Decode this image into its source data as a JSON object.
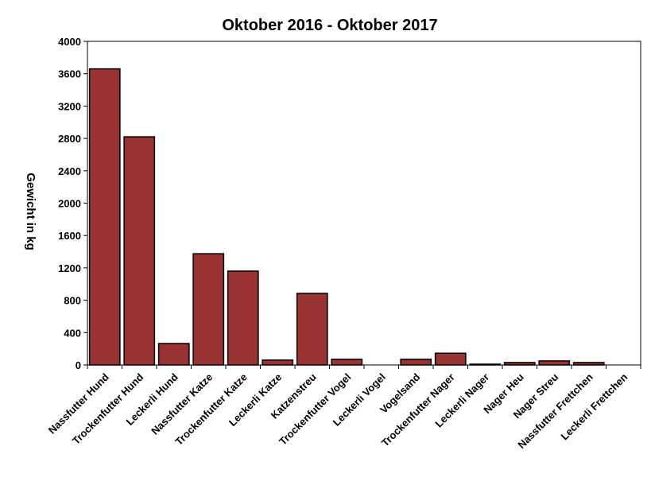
{
  "chart_data": {
    "type": "bar",
    "title": "Oktober 2016 - Oktober 2017",
    "ylabel": "Gewicht in kg",
    "xlabel": "",
    "ylim": [
      0,
      4000
    ],
    "yticks": [
      "0",
      "400",
      "800",
      "1200",
      "1600",
      "2000",
      "2400",
      "2800",
      "3200",
      "3600",
      "4000"
    ],
    "grid": false,
    "legend": "none",
    "bar_color": "#993333",
    "categories": [
      "Nassfutter Hund",
      "Trockenfutter Hund",
      "Leckerli Hund",
      "Nassfutter Katze",
      "Trockenfutter Katze",
      "Leckerli Katze",
      "Katzenstreu",
      "Trockenfutter Vogel",
      "Leckerli Vogel",
      "Vogelsand",
      "Trockenfutter Nager",
      "Leckerli Nager",
      "Nager Heu",
      "Nager Streu",
      "Nassfutter Frettchen",
      "Leckerli Frettchen"
    ],
    "values": [
      3660,
      2820,
      265,
      1375,
      1160,
      60,
      885,
      70,
      0,
      70,
      145,
      10,
      30,
      50,
      30,
      0
    ]
  }
}
